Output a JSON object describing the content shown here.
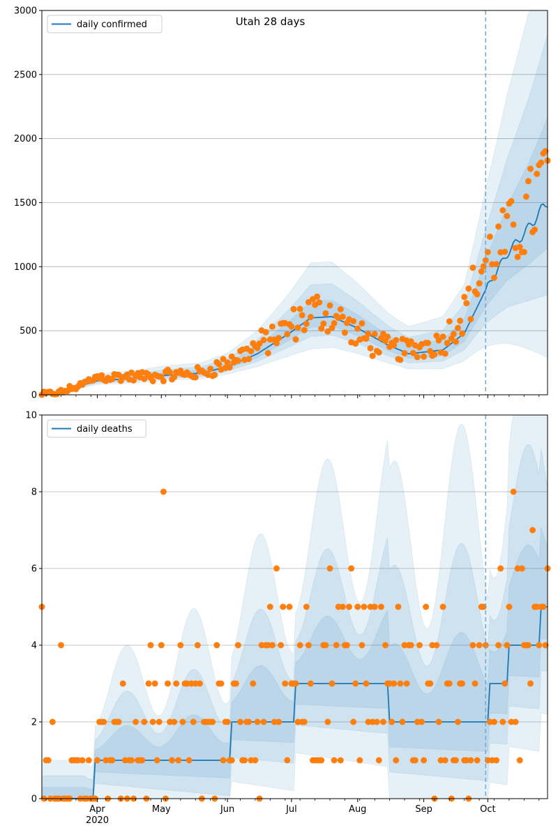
{
  "chart_data": [
    {
      "type": "line",
      "title": "Utah 28 days",
      "legend": {
        "label": "daily confirmed",
        "placement": "top-left"
      },
      "x_range": [
        "2020-03-06",
        "2020-10-29"
      ],
      "ylim": [
        0,
        3000
      ],
      "y_ticks": [
        "0",
        "500",
        "1000",
        "1500",
        "2000",
        "2500",
        "3000"
      ],
      "y_tick_values": [
        0,
        500,
        1000,
        1500,
        2000,
        2500,
        3000
      ],
      "grid": "horizontal",
      "forecast_start": "2020-09-30",
      "colors": {
        "line": "#1f77b4",
        "points": "#ff7f0e",
        "band": "#1f77b4",
        "vline": "#6fa8d0"
      },
      "line_anchors": [
        [
          "2020-03-06",
          0
        ],
        [
          "2020-03-15",
          20
        ],
        [
          "2020-03-25",
          75
        ],
        [
          "2020-04-01",
          110
        ],
        [
          "2020-04-20",
          130
        ],
        [
          "2020-05-01",
          150
        ],
        [
          "2020-05-20",
          170
        ],
        [
          "2020-06-01",
          220
        ],
        [
          "2020-06-15",
          320
        ],
        [
          "2020-06-30",
          480
        ],
        [
          "2020-07-10",
          600
        ],
        [
          "2020-07-20",
          610
        ],
        [
          "2020-08-01",
          520
        ],
        [
          "2020-08-15",
          390
        ],
        [
          "2020-08-25",
          320
        ],
        [
          "2020-09-10",
          350
        ],
        [
          "2020-09-20",
          480
        ],
        [
          "2020-09-30",
          820
        ],
        [
          "2020-10-10",
          1100
        ],
        [
          "2020-10-20",
          1300
        ],
        [
          "2020-10-29",
          1510
        ]
      ],
      "band_widths": [
        [
          "2020-03-06",
          0.3
        ],
        [
          "2020-06-01",
          0.3
        ],
        [
          "2020-07-10",
          0.45
        ],
        [
          "2020-08-20",
          0.4
        ],
        [
          "2020-09-20",
          0.5
        ],
        [
          "2020-10-29",
          0.9
        ]
      ],
      "point_anchors": [
        [
          "2020-03-06",
          2
        ],
        [
          "2020-03-15",
          20
        ],
        [
          "2020-03-25",
          80
        ],
        [
          "2020-04-01",
          140
        ],
        [
          "2020-04-20",
          140
        ],
        [
          "2020-05-01",
          150
        ],
        [
          "2020-05-20",
          170
        ],
        [
          "2020-06-01",
          250
        ],
        [
          "2020-06-15",
          380
        ],
        [
          "2020-06-30",
          520
        ],
        [
          "2020-07-10",
          650
        ],
        [
          "2020-07-20",
          640
        ],
        [
          "2020-08-01",
          460
        ],
        [
          "2020-08-15",
          360
        ],
        [
          "2020-08-25",
          350
        ],
        [
          "2020-09-10",
          420
        ],
        [
          "2020-09-20",
          650
        ],
        [
          "2020-09-30",
          1050
        ],
        [
          "2020-10-10",
          1200
        ],
        [
          "2020-10-20",
          1400
        ],
        [
          "2020-10-29",
          1750
        ]
      ]
    },
    {
      "type": "line",
      "title": "",
      "legend": {
        "label": "daily deaths",
        "placement": "top-left"
      },
      "x_range": [
        "2020-03-06",
        "2020-10-29"
      ],
      "ylim": [
        0,
        10
      ],
      "y_ticks": [
        "0",
        "2",
        "4",
        "6",
        "8",
        "10"
      ],
      "y_tick_values": [
        0,
        2,
        4,
        6,
        8,
        10
      ],
      "x_ticks": [
        "Apr",
        "May",
        "Jun",
        "Jul",
        "Aug",
        "Sep",
        "Oct"
      ],
      "x_tick_dates": [
        "2020-04-01",
        "2020-05-01",
        "2020-06-01",
        "2020-07-01",
        "2020-08-01",
        "2020-09-01",
        "2020-10-01"
      ],
      "x_sublabel": "2020",
      "grid": "horizontal",
      "forecast_start": "2020-09-30",
      "colors": {
        "line": "#1f77b4",
        "points": "#ff7f0e",
        "band": "#1f77b4",
        "vline": "#6fa8d0"
      },
      "line_anchors": [
        [
          "2020-03-06",
          0
        ],
        [
          "2020-03-30",
          0
        ],
        [
          "2020-03-31",
          1
        ],
        [
          "2020-05-23",
          1
        ],
        [
          "2020-06-02",
          1
        ],
        [
          "2020-06-03",
          2
        ],
        [
          "2020-06-30",
          2
        ],
        [
          "2020-07-03",
          3
        ],
        [
          "2020-08-15",
          3
        ],
        [
          "2020-08-16",
          2
        ],
        [
          "2020-09-30",
          2
        ],
        [
          "2020-10-02",
          3
        ],
        [
          "2020-10-10",
          3
        ],
        [
          "2020-10-11",
          4
        ],
        [
          "2020-10-25",
          4
        ],
        [
          "2020-10-26",
          5
        ],
        [
          "2020-10-29",
          5
        ]
      ],
      "point_anchors": [
        [
          "2020-03-06",
          0
        ],
        [
          "2020-03-25",
          0.5
        ],
        [
          "2020-04-10",
          1.2
        ],
        [
          "2020-05-01",
          1.8
        ],
        [
          "2020-06-01",
          2.2
        ],
        [
          "2020-07-01",
          3
        ],
        [
          "2020-07-20",
          3.5
        ],
        [
          "2020-08-15",
          3.2
        ],
        [
          "2020-09-01",
          2.5
        ],
        [
          "2020-09-20",
          2.2
        ],
        [
          "2020-10-10",
          3.5
        ],
        [
          "2020-10-29",
          4
        ]
      ]
    }
  ]
}
